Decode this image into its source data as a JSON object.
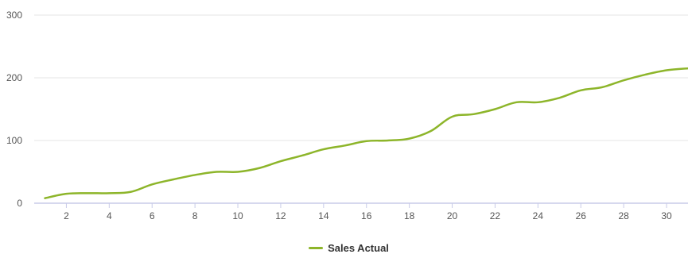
{
  "chart_data": {
    "type": "line",
    "x": [
      1,
      2,
      3,
      4,
      5,
      6,
      7,
      8,
      9,
      10,
      11,
      12,
      13,
      14,
      15,
      16,
      17,
      18,
      19,
      20,
      21,
      22,
      23,
      24,
      25,
      26,
      27,
      28,
      29,
      30,
      31
    ],
    "x_ticks": [
      2,
      4,
      6,
      8,
      10,
      12,
      14,
      16,
      18,
      20,
      22,
      24,
      26,
      28,
      30
    ],
    "y_ticks": [
      0,
      100,
      200,
      300
    ],
    "xlim": [
      0.5,
      31
    ],
    "ylim": [
      0,
      300
    ],
    "grid": true,
    "legend_position": "bottom-center",
    "series": [
      {
        "name": "Sales Actual",
        "color": "#8db52a",
        "values": [
          8,
          15,
          16,
          16,
          18,
          30,
          38,
          45,
          50,
          50,
          56,
          67,
          76,
          86,
          92,
          99,
          100,
          103,
          115,
          138,
          142,
          150,
          161,
          161,
          168,
          180,
          185,
          196,
          205,
          212,
          215
        ]
      }
    ]
  }
}
